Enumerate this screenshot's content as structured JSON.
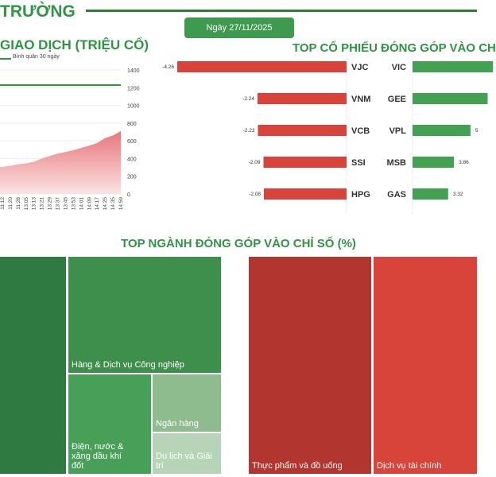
{
  "header": {
    "title": "TRƯỜNG",
    "date": "Ngày 27/11/2025"
  },
  "colors": {
    "green": "#2f9444",
    "red": "#d9443a",
    "pill": "#3d9a4e"
  },
  "chart_data": [
    {
      "type": "area",
      "title": "GIAO DỊCH (TRIỆU CỔ)",
      "legend": "Bình quân 30 ngày",
      "x": [
        "11:12",
        "11:20",
        "11:28",
        "13:05",
        "13:13",
        "13:21",
        "13:29",
        "13:37",
        "13:45",
        "13:53",
        "14:01",
        "14:09",
        "14:17",
        "14:25",
        "14:35",
        "14:59"
      ],
      "values": [
        305,
        320,
        335,
        345,
        365,
        400,
        430,
        455,
        475,
        495,
        520,
        545,
        575,
        630,
        660,
        710
      ],
      "average_30d": 1230,
      "ylim": [
        0,
        1400
      ],
      "yticks": [
        "0",
        "200",
        "400",
        "600",
        "800",
        "1000",
        "1200",
        "1400"
      ],
      "grid": true
    },
    {
      "type": "bar",
      "title": "TOP CỔ PHIẾU ĐÓNG GÓP VÀO CH",
      "negative": [
        {
          "ticker": "VJC",
          "value": -4.26,
          "label": "-4.26"
        },
        {
          "ticker": "VNM",
          "value": -2.24,
          "label": "-2.24"
        },
        {
          "ticker": "VCB",
          "value": -2.23,
          "label": "-2.23"
        },
        {
          "ticker": "SSI",
          "value": -2.09,
          "label": "-2.09"
        },
        {
          "ticker": "HPG",
          "value": -2.08,
          "label": "-2.08"
        }
      ],
      "positive": [
        {
          "ticker": "VIC",
          "value": 7.5,
          "label": ""
        },
        {
          "ticker": "GEE",
          "value": 7.0,
          "label": ""
        },
        {
          "ticker": "VPL",
          "value": 5.4,
          "label": "5"
        },
        {
          "ticker": "MSB",
          "value": 3.86,
          "label": "3.86"
        },
        {
          "ticker": "GAS",
          "value": 3.32,
          "label": "3.32"
        }
      ]
    },
    {
      "type": "treemap",
      "title": "TOP NGÀNH ĐÓNG GÓP VÀO CHỈ SỐ (%)",
      "sectors": [
        {
          "name": "",
          "color": "#2f7a40"
        },
        {
          "name": "Hàng & Dịch vụ Công nghiệp",
          "color": "#3e8f4c"
        },
        {
          "name": "Điện, nước & xăng dầu khí đốt",
          "color": "#48a058"
        },
        {
          "name": "Ngân hàng",
          "color": "#8fbc8f"
        },
        {
          "name": "Du lịch và Giải trí",
          "color": "#b8d4b8"
        },
        {
          "name": "Thực phẩm và đồ uống",
          "color": "#b3352f"
        },
        {
          "name": "Dịch vụ tài chính",
          "color": "#d9443a"
        }
      ]
    }
  ]
}
